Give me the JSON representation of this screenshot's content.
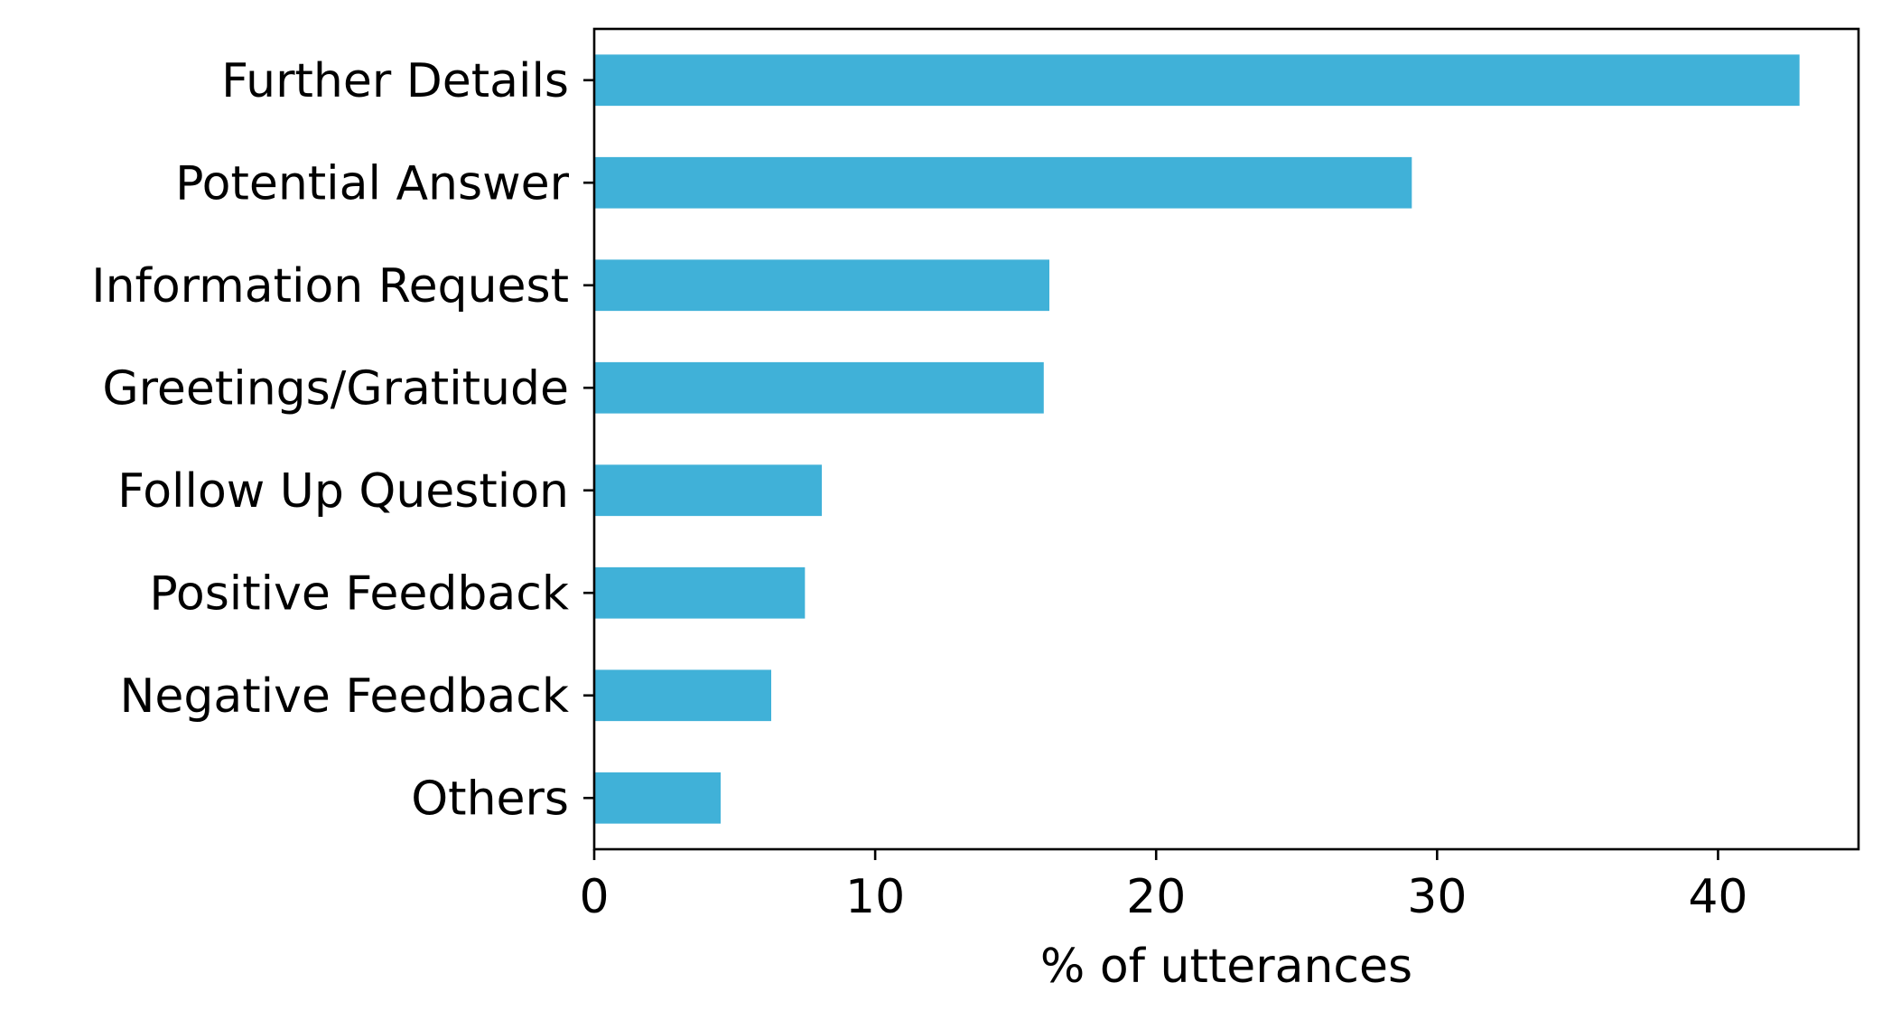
{
  "chart_data": {
    "type": "bar",
    "orientation": "horizontal",
    "title": "",
    "xlabel": "% of utterances",
    "ylabel": "",
    "categories": [
      "Further Details",
      "Potential Answer",
      "Information Request",
      "Greetings/Gratitude",
      "Follow Up Question",
      "Positive Feedback",
      "Negative Feedback",
      "Others"
    ],
    "values": [
      42.9,
      29.1,
      16.2,
      16.0,
      8.1,
      7.5,
      6.3,
      4.5
    ],
    "xlim": [
      0,
      45
    ],
    "xticks": [
      0,
      10,
      20,
      30,
      40
    ],
    "xtick_labels": [
      "0",
      "10",
      "20",
      "30",
      "40"
    ],
    "grid": false,
    "legend": "none",
    "bar_color": "#40b1d8"
  }
}
